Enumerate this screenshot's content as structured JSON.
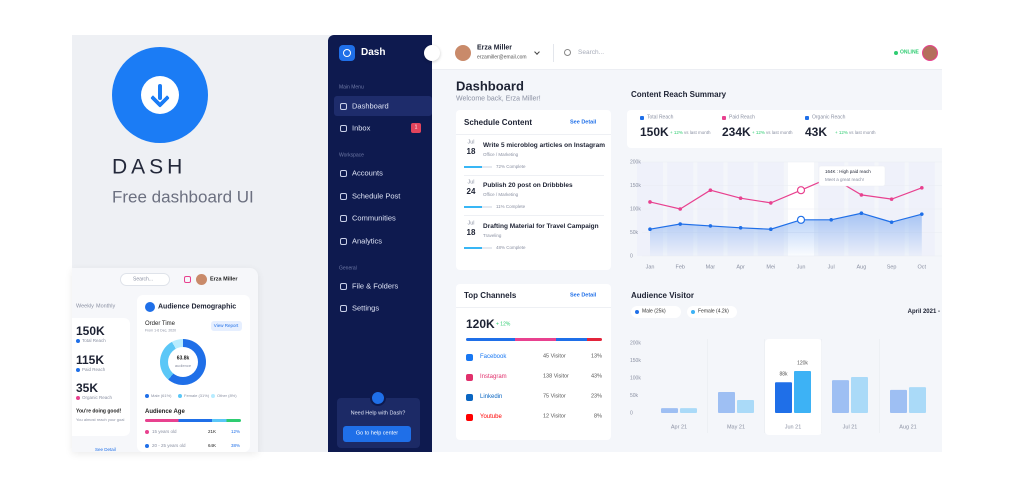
{
  "brand": {
    "name": "DASH",
    "tagline": "Free dashboard UI"
  },
  "sidebar": {
    "logo": "Dash",
    "sections": [
      {
        "title": "Main Menu",
        "items": [
          "Dashboard",
          "Inbox"
        ]
      },
      {
        "title": "Workspace",
        "items": [
          "Accounts",
          "Schedule Post",
          "Communities",
          "Analytics"
        ]
      },
      {
        "title": "General",
        "items": [
          "File & Folders",
          "Settings"
        ]
      }
    ],
    "inbox_badge": "1",
    "help": {
      "title": "Need Help with Dash?",
      "button": "Go to help center"
    }
  },
  "topbar": {
    "user_name": "Erza Miller",
    "user_email": "erzamiller@email.com",
    "search_placeholder": "Search...",
    "status": "ONLINE"
  },
  "header": {
    "title": "Dashboard",
    "subtitle": "Welcome back, Erza Miller!"
  },
  "schedule": {
    "title": "Schedule Content",
    "link": "See Detail",
    "items": [
      {
        "month": "Jul",
        "day": "18",
        "title": "Write 5 microblog articles on Instagram",
        "meta": "Office / Marketing",
        "progress": "72% Complete"
      },
      {
        "month": "Jul",
        "day": "24",
        "title": "Publish 20 post on Dribbbles",
        "meta": "Office / Marketing",
        "progress": "11% Complete"
      },
      {
        "month": "Jul",
        "day": "18",
        "title": "Drafting Material for Travel Campaign",
        "meta": "Traveling",
        "progress": "48% Complete"
      }
    ]
  },
  "channels": {
    "title": "Top Channels",
    "link": "See Detail",
    "total": "120K",
    "change": "+ 12%",
    "rows": [
      {
        "name": "Facebook",
        "visitors": "45 Visitor",
        "share": "13%"
      },
      {
        "name": "Instagram",
        "visitors": "138 Visitor",
        "share": "43%"
      },
      {
        "name": "Linkedin",
        "visitors": "75 Visitor",
        "share": "23%"
      },
      {
        "name": "Youtube",
        "visitors": "12 Visitor",
        "share": "8%"
      }
    ]
  },
  "reach": {
    "title": "Content Reach Summary",
    "stats": [
      {
        "label": "Total Reach",
        "value": "150K",
        "change": "+ 12%",
        "note": "vs last month"
      },
      {
        "label": "Paid Reach",
        "value": "234K",
        "change": "+ 12%",
        "note": "vs last month"
      },
      {
        "label": "Organic Reach",
        "value": "43K",
        "change": "+ 12%",
        "note": "vs last month"
      }
    ],
    "chart": {
      "type": "line",
      "categories": [
        "Jan",
        "Feb",
        "Mar",
        "Apr",
        "Mei",
        "Jun",
        "Jul",
        "Aug",
        "Sep",
        "Oct"
      ],
      "series": [
        {
          "color": "#e8418f",
          "values": [
            115,
            100,
            140,
            123,
            113,
            140,
            168,
            130,
            121,
            145
          ]
        },
        {
          "color": "#1f6fe8",
          "values": [
            57,
            68,
            64,
            60,
            57,
            77,
            77,
            91,
            72,
            89
          ]
        }
      ],
      "ylim": [
        0,
        200
      ],
      "yticks": [
        0,
        {
          "value": 50,
          "label": "50k"
        },
        {
          "value": 100,
          "label": "100k"
        },
        {
          "value": 150,
          "label": "150k"
        },
        {
          "value": 200,
          "label": "200k"
        }
      ],
      "highlight": "Jun",
      "annotations": [
        "164K : High paid reach",
        "Meet a great reach!"
      ]
    }
  },
  "visitor": {
    "title": "Audience Visitor",
    "range_label": "April 2021 -",
    "chart": {
      "type": "bar",
      "categories": [
        "Apr 21",
        "May 21",
        "Jun 21",
        "Jul 21",
        "Aug 21"
      ],
      "series": [
        {
          "name": "Male (25k)",
          "color": "#1f6fe8",
          "values": [
            14,
            60,
            88,
            94,
            66
          ],
          "value_labels": [
            null,
            null,
            "88k",
            null,
            null
          ]
        },
        {
          "name": "Female (4.2k)",
          "color": "#3db2f5",
          "values": [
            14,
            37,
            120,
            103,
            74
          ],
          "value_labels": [
            null,
            null,
            "120k",
            null,
            null
          ]
        }
      ],
      "ylim": [
        0,
        200
      ],
      "yticks": [
        0,
        {
          "value": 50,
          "label": "50k"
        },
        {
          "value": 100,
          "label": "100k"
        },
        {
          "value": 150,
          "label": "150k"
        },
        {
          "value": 200,
          "label": "200k"
        }
      ],
      "highlight": "Jun 21"
    }
  },
  "preview": {
    "search": "Search...",
    "user": "Erza Miller",
    "tabs": [
      "Weekly",
      "Monthly"
    ],
    "stats": [
      {
        "value": "150K",
        "label": "Total Reach"
      },
      {
        "value": "115K",
        "label": "Paid Reach"
      },
      {
        "value": "35K",
        "label": "Organic Reach"
      }
    ],
    "message": "You're doing good!",
    "message_sub": "You almost reach your goal",
    "card_title": "Audience Demographic",
    "order_time": "Order Time",
    "order_sub": "From 1-6 Dec, 2020",
    "view_report": "View Report",
    "donut_value": "63.8k",
    "donut_label": "audience",
    "legend": [
      "Male (61%)",
      "Female (31%)",
      "Other (8%)"
    ],
    "age_title": "Audience Age",
    "ages": [
      {
        "label": "15 years old",
        "count": "21K",
        "share": "12%"
      },
      {
        "label": "20 - 25 years old",
        "count": "64K",
        "share": "38%"
      }
    ],
    "link": "See Detail"
  }
}
